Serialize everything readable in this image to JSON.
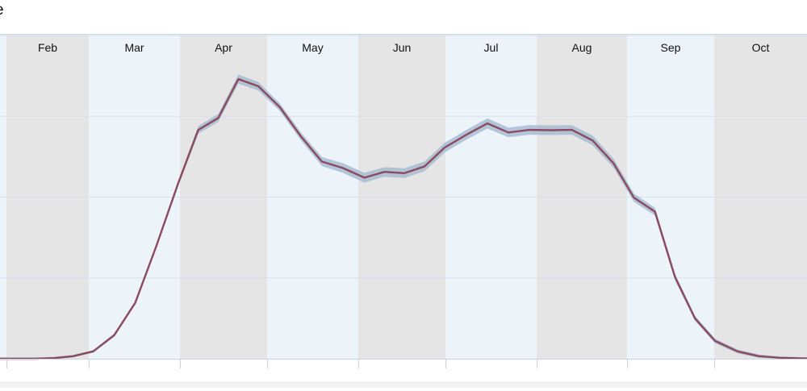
{
  "chart_data": {
    "type": "line",
    "title": "e",
    "months": [
      "Feb",
      "Mar",
      "Apr",
      "May",
      "Jun",
      "Jul",
      "Aug",
      "Sep",
      "Oct"
    ],
    "ylim": [
      0,
      100
    ],
    "grid": true,
    "band_colors": {
      "gray": "#e5e5e5",
      "blue": "#ecf4fa"
    },
    "line_color": "#8b4a5d",
    "ribbon_color": "#9fb5cf",
    "x": [
      0.42,
      0.65,
      0.88,
      1.12,
      1.35,
      1.58,
      1.81,
      2.05,
      2.28,
      2.51,
      2.74,
      2.98,
      3.21,
      3.44,
      3.67,
      3.9,
      4.14,
      4.37,
      4.6,
      4.83,
      5.07,
      5.3,
      5.53,
      5.76,
      5.99,
      6.23,
      6.46,
      6.69,
      6.92,
      7.16,
      7.39,
      7.62,
      7.85,
      8.08,
      8.32,
      8.55,
      8.78,
      9.01,
      9.25,
      9.48,
      9.71,
      9.94,
      10.17,
      10.41,
      10.64,
      10.87
    ],
    "values": [
      0,
      0,
      0,
      0,
      0,
      0.2,
      0.8,
      2.3,
      7.3,
      17.3,
      34.8,
      54.2,
      70.8,
      74.5,
      86.5,
      84.3,
      77.8,
      68.8,
      61.0,
      59.0,
      56.0,
      57.8,
      57.4,
      59.5,
      65.3,
      69.3,
      72.8,
      70.0,
      70.8,
      70.7,
      70.8,
      67.5,
      60.5,
      49.8,
      45.5,
      25.3,
      12.5,
      5.5,
      2.3,
      0.8,
      0.3,
      0.1,
      0,
      0,
      0,
      0
    ],
    "ribbon_width": [
      0.4,
      0.4,
      0.4,
      0.4,
      0.4,
      0.4,
      0.4,
      0.4,
      0.5,
      0.6,
      0.7,
      0.8,
      1.2,
      1.2,
      1.4,
      1.3,
      1.2,
      1.2,
      1.4,
      1.5,
      1.5,
      1.5,
      1.5,
      1.5,
      1.5,
      1.5,
      1.6,
      1.5,
      1.5,
      1.5,
      1.5,
      1.5,
      1.4,
      1.3,
      1.2,
      1.0,
      0.8,
      0.7,
      0.6,
      0.5,
      0.4,
      0.4,
      0.4,
      0.4,
      0.4,
      0.4
    ]
  }
}
